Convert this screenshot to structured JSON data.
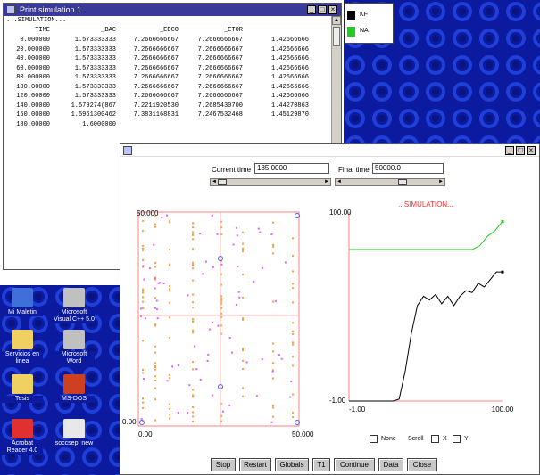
{
  "output_window": {
    "title": "Print simulation 1",
    "header_line": "...SIMULATION...",
    "columns": [
      "TIME",
      "_BAC",
      "_EDCO",
      "_ETOR",
      ""
    ],
    "rows": [
      [
        "0.000000",
        "1.573333333",
        "7.2666666667",
        "7.2666666667",
        "1.42666666"
      ],
      [
        "20.000000",
        "1.573333333",
        "7.2666666667",
        "7.2666666667",
        "1.42666666"
      ],
      [
        "40.000000",
        "1.573333333",
        "7.2666666667",
        "7.2666666667",
        "1.42666666"
      ],
      [
        "60.000000",
        "1.573333333",
        "7.2666666667",
        "7.2666666667",
        "1.42666666"
      ],
      [
        "80.000000",
        "1.573333333",
        "7.2666666667",
        "7.2666666667",
        "1.42666666"
      ],
      [
        "100.00000",
        "1.573333333",
        "7.2666666667",
        "7.2666666667",
        "1.42666666"
      ],
      [
        "120.00000",
        "1.573333333",
        "7.2666666667",
        "7.2666666667",
        "1.42666666"
      ],
      [
        "140.00000",
        "1.579274(867",
        "7.2211920530",
        "7.2685430700",
        "1.44270863"
      ],
      [
        "160.00000",
        "1.5961300462",
        "7.3831168831",
        "7.2467532468",
        "1.45129870"
      ],
      [
        "180.00000",
        "1.6000000",
        "",
        "",
        ""
      ]
    ]
  },
  "legend_window": {
    "items": [
      {
        "label": "KF",
        "color": "#000000"
      },
      {
        "label": "NA",
        "color": "#22cc22"
      }
    ]
  },
  "desktop_icons": [
    {
      "label": "Mi Maletin",
      "color": "#3f6fd8"
    },
    {
      "label": "Microsoft Visual C++ 5.0",
      "color": "#c0c0c0"
    },
    {
      "label": "Servicios en linea",
      "color": "#f0d060"
    },
    {
      "label": "Microsoft Word",
      "color": "#c0c0c0"
    },
    {
      "label": "Tesis",
      "color": "#f0d060"
    },
    {
      "label": "MS-DOS",
      "color": "#d04020"
    },
    {
      "label": "Acrobat Reader 4.0",
      "color": "#e03030"
    },
    {
      "label": "soccsep_new",
      "color": "#e8e8e8"
    }
  ],
  "sim_window": {
    "current_time_label": "Current time",
    "current_time_value": "185.0000",
    "final_time_label": "Final time",
    "final_time_value": "50000.0",
    "sim_title": "...SIMULATION...",
    "scatter": {
      "y_max_label": "50.000",
      "y_min_label": "0.00",
      "x_min_label": "0.00",
      "x_max_label": "50.000"
    },
    "line_chart": {
      "y_max_label": "100.00",
      "y_min_label": "-1.00",
      "x_min_label": "-1.00",
      "x_max_label": "100.00"
    },
    "options": {
      "none_label": "None",
      "scroll_label": "Scroll",
      "x_label": "X",
      "y_label": "Y"
    },
    "buttons": [
      "Stop",
      "Restart",
      "Globals",
      "T1",
      "Continue",
      "Data",
      "Close"
    ]
  },
  "chart_data": {
    "type": "line",
    "title": "...SIMULATION...",
    "ylim": [
      -1,
      100
    ],
    "xlim": [
      -1,
      100
    ],
    "series": [
      {
        "name": "NA",
        "color": "#22cc22",
        "x": [
          -1,
          20,
          40,
          60,
          80,
          85,
          90,
          95,
          100
        ],
        "y": [
          80,
          80,
          80,
          80,
          80,
          82,
          87,
          90,
          95
        ]
      },
      {
        "name": "KF",
        "color": "#000000",
        "x": [
          -1,
          10,
          20,
          28,
          32,
          36,
          40,
          44,
          48,
          52,
          56,
          60,
          64,
          68,
          72,
          76,
          80,
          84,
          88,
          92,
          96,
          100
        ],
        "y": [
          -1,
          -1,
          -1,
          -1,
          0,
          15,
          35,
          50,
          55,
          53,
          56,
          51,
          55,
          50,
          55,
          58,
          57,
          62,
          60,
          64,
          68,
          68
        ]
      }
    ]
  }
}
